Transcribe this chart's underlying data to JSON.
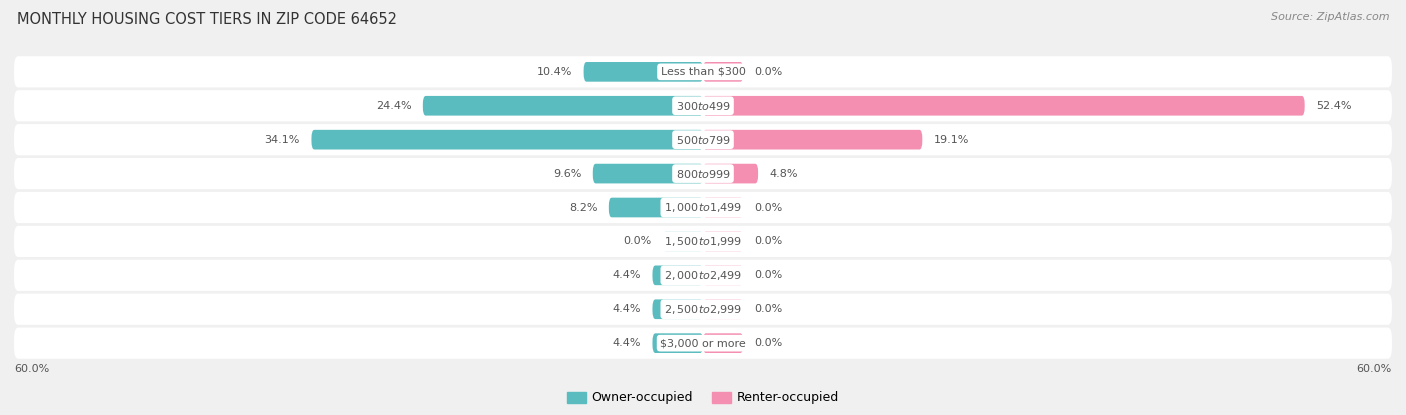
{
  "title": "MONTHLY HOUSING COST TIERS IN ZIP CODE 64652",
  "source": "Source: ZipAtlas.com",
  "categories": [
    "Less than $300",
    "$300 to $499",
    "$500 to $799",
    "$800 to $999",
    "$1,000 to $1,499",
    "$1,500 to $1,999",
    "$2,000 to $2,499",
    "$2,500 to $2,999",
    "$3,000 or more"
  ],
  "owner_values": [
    10.4,
    24.4,
    34.1,
    9.6,
    8.2,
    0.0,
    4.4,
    4.4,
    4.4
  ],
  "renter_values": [
    0.0,
    52.4,
    19.1,
    4.8,
    0.0,
    0.0,
    0.0,
    0.0,
    0.0
  ],
  "owner_color": "#5bbcbf",
  "renter_color": "#f48fb1",
  "axis_max": 60.0,
  "bg_color": "#f0f0f0",
  "row_bg_color": "#ffffff",
  "label_color": "#555555",
  "title_color": "#333333",
  "bar_height": 0.58,
  "renter_stub": 3.5,
  "owner_stub": 3.5,
  "label_fontsize": 8.0,
  "title_fontsize": 10.5,
  "source_fontsize": 8.0,
  "legend_fontsize": 9.0,
  "value_fontsize": 8.0
}
